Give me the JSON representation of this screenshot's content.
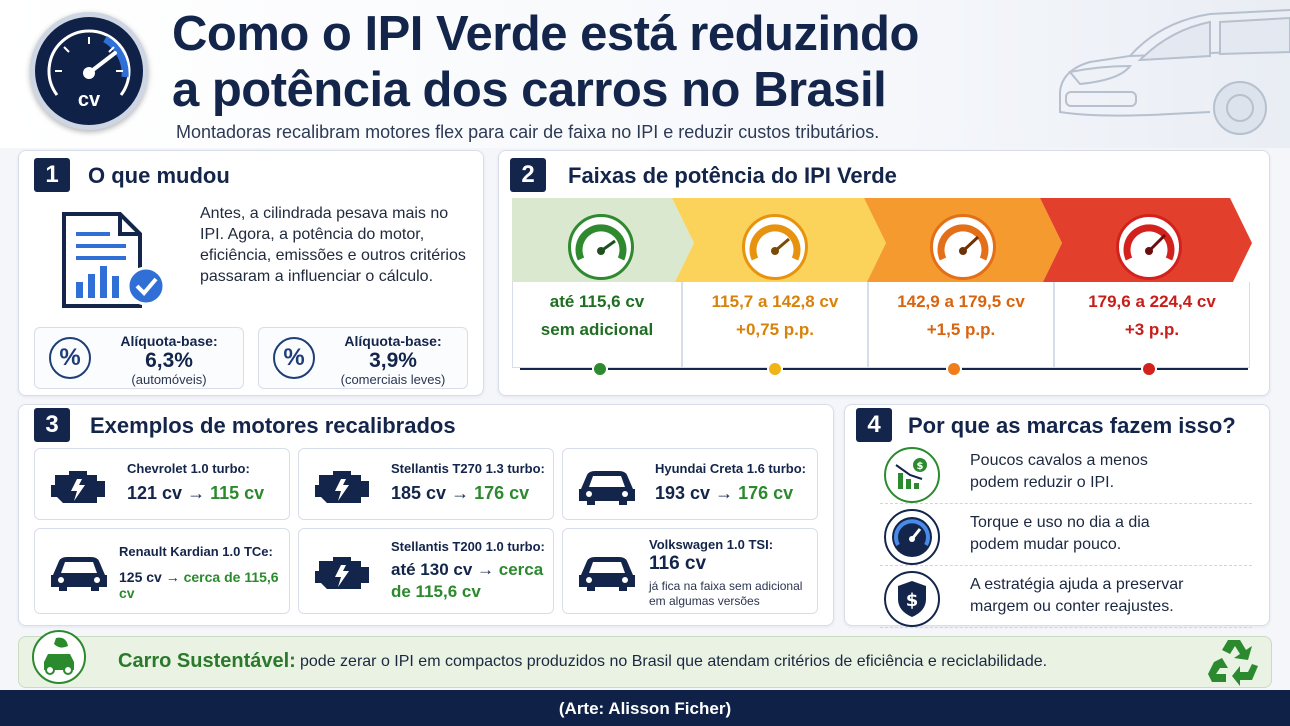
{
  "header": {
    "title_line1": "Como o IPI Verde está reduzindo",
    "title_line2": "a potência dos carros no Brasil",
    "subtitle": "Montadoras recalibram motores flex para cair de faixa no IPI e reduzir custos tributários.",
    "gauge_label": "cv"
  },
  "section1": {
    "number": "1",
    "title": "O que mudou",
    "text": "Antes, a cilindrada pesava mais no IPI. Agora, a potência do motor, eficiência, emissões e outros critérios passaram a influenciar o cálculo.",
    "rates": [
      {
        "label": "Alíquota-base:",
        "value": "6,3%",
        "sub": "(automóveis)",
        "icon": "%"
      },
      {
        "label": "Alíquota-base:",
        "value": "3,9%",
        "sub": "(comerciais leves)",
        "icon": "%"
      }
    ]
  },
  "section2": {
    "number": "2",
    "title": "Faixas de potência do IPI Verde",
    "bands": [
      {
        "range": "até 115,6 cv",
        "add": "sem adicional",
        "color": "#2f8a2f",
        "bg": "#d9e8cf",
        "text_color": "#1f6e22"
      },
      {
        "range": "115,7 a 142,8 cv",
        "add": "+0,75 p.p.",
        "color": "#e8930f",
        "bg": "#fbd35a",
        "text_color": "#d9820a"
      },
      {
        "range": "142,9 a 179,5 cv",
        "add": "+1,5 p.p.",
        "color": "#e36f18",
        "bg": "#f59a2e",
        "text_color": "#d8640f"
      },
      {
        "range": "179,6 a 224,4 cv",
        "add": "+3 p.p.",
        "color": "#d3221d",
        "bg": "#e2402c",
        "text_color": "#c81e1a"
      }
    ]
  },
  "section3": {
    "number": "3",
    "title": "Exemplos de motores recalibrados",
    "examples": [
      {
        "name": "Chevrolet 1.0 turbo:",
        "from": "121 cv",
        "arrow": "→",
        "to": "115 cv",
        "icon": "engine-icon"
      },
      {
        "name": "Stellantis T270 1.3 turbo:",
        "from": "185 cv",
        "arrow": "→",
        "to": "176 cv",
        "icon": "engine-icon"
      },
      {
        "name": "Hyundai Creta 1.6 turbo:",
        "from": "193 cv",
        "arrow": "→",
        "to": "176 cv",
        "icon": "car-icon"
      },
      {
        "name": "Renault Kardian 1.0 TCe:",
        "from": "125 cv",
        "arrow": "→",
        "to": "cerca de 115,6 cv",
        "icon": "car-icon"
      },
      {
        "name": "Stellantis T200 1.0 turbo:",
        "from": "até 130 cv",
        "arrow": "→",
        "to_line1": "cerca",
        "to_line2": "de 115,6 cv",
        "icon": "engine-icon"
      },
      {
        "name": "Volkswagen 1.0 TSI:",
        "value": "116 cv",
        "note_line1": "já fica na faixa sem adicional",
        "note_line2": "em algumas versões",
        "icon": "car-icon"
      }
    ]
  },
  "section4": {
    "number": "4",
    "title": "Por que as marcas fazem isso?",
    "reasons": [
      {
        "line1": "Poucos cavalos a menos",
        "line2": "podem reduzir o IPI.",
        "icon": "money-chart-icon"
      },
      {
        "line1": "Torque e uso no dia a dia",
        "line2": "podem mudar pouco.",
        "icon": "speedometer-icon"
      },
      {
        "line1": "A estratégia ajuda a preservar",
        "line2": "margem ou conter reajustes.",
        "icon": "dollar-shield-icon"
      }
    ]
  },
  "sustainable": {
    "title": "Carro Sustentável:",
    "text": "pode zerar o IPI em compactos produzidos no Brasil que atendam critérios de eficiência e reciclabilidade."
  },
  "footer": {
    "credit": "(Arte: Alisson Ficher)"
  }
}
